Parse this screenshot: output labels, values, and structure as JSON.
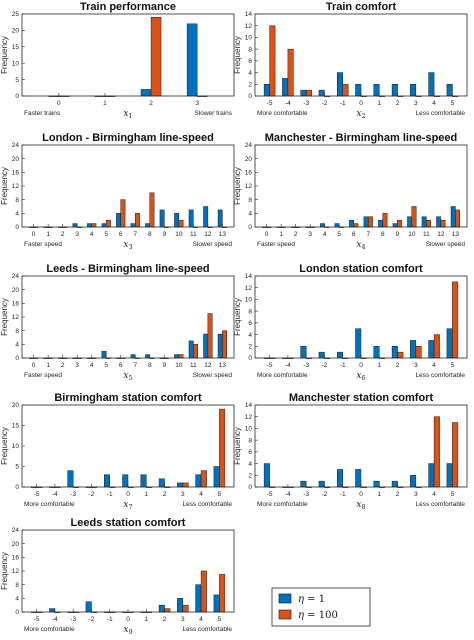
{
  "colors": {
    "series1": "#0072BD",
    "series2": "#D95319",
    "axis": "#262626"
  },
  "legend": {
    "items": [
      {
        "symbol": "η",
        "rest": " = 1"
      },
      {
        "symbol": "η",
        "rest": " = 100"
      }
    ]
  },
  "chart_data": [
    {
      "type": "bar",
      "title": "Train performance",
      "ylabel": "Frequency",
      "xvar": "x",
      "xsub": "1",
      "categories": [
        "0",
        "1",
        "2",
        "3"
      ],
      "xlabel_left": "Faster trains",
      "xlabel_right": "Slower trains",
      "yticks": [
        0,
        5,
        10,
        15,
        20,
        25
      ],
      "ylim": [
        0,
        25
      ],
      "series": [
        {
          "values": [
            0,
            0,
            2,
            22
          ]
        },
        {
          "values": [
            0,
            0,
            24,
            0
          ]
        }
      ]
    },
    {
      "type": "bar",
      "title": "Train comfort",
      "ylabel": "Frequency",
      "xvar": "x",
      "xsub": "2",
      "categories": [
        "-5",
        "-4",
        "-3",
        "-2",
        "-1",
        "0",
        "1",
        "2",
        "3",
        "4",
        "5"
      ],
      "xlabel_left": "More comfortable",
      "xlabel_right": "Less comfortable",
      "yticks": [
        0,
        2,
        4,
        6,
        8,
        10,
        12,
        14
      ],
      "ylim": [
        0,
        14
      ],
      "series": [
        {
          "values": [
            2,
            3,
            1,
            1,
            4,
            2,
            2,
            2,
            2,
            4,
            2
          ]
        },
        {
          "values": [
            12,
            8,
            1,
            0,
            2,
            0,
            0,
            0,
            0,
            0,
            0
          ]
        }
      ]
    },
    {
      "type": "bar",
      "title": "London - Birmingham line-speed",
      "ylabel": "Frequency",
      "xvar": "x",
      "xsub": "3",
      "categories": [
        "0",
        "1",
        "2",
        "3",
        "4",
        "5",
        "6",
        "7",
        "8",
        "9",
        "10",
        "11",
        "12",
        "13"
      ],
      "xlabel_left": "Faster speed",
      "xlabel_right": "Slower speed",
      "yticks": [
        0,
        4,
        8,
        12,
        16,
        20,
        24
      ],
      "ylim": [
        0,
        24
      ],
      "series": [
        {
          "values": [
            0,
            0,
            0,
            1,
            1,
            1,
            4,
            1,
            1,
            5,
            4,
            5,
            6,
            5
          ]
        },
        {
          "values": [
            0,
            0,
            0,
            0,
            1,
            2,
            8,
            4,
            10,
            0,
            2,
            0,
            0,
            0
          ]
        }
      ]
    },
    {
      "type": "bar",
      "title": "Manchester - Birmingham line-speed",
      "ylabel": "Frequency",
      "xvar": "x",
      "xsub": "4",
      "categories": [
        "0",
        "1",
        "2",
        "3",
        "4",
        "5",
        "6",
        "7",
        "8",
        "9",
        "10",
        "11",
        "12",
        "13"
      ],
      "xlabel_left": "Faster speed",
      "xlabel_right": "Slower speed",
      "yticks": [
        0,
        4,
        8,
        12,
        16,
        20,
        24
      ],
      "ylim": [
        0,
        24
      ],
      "series": [
        {
          "values": [
            0,
            0,
            0,
            0,
            1,
            1,
            2,
            3,
            2,
            1,
            3,
            3,
            3,
            6
          ]
        },
        {
          "values": [
            0,
            0,
            0,
            0,
            0,
            0,
            1,
            3,
            4,
            2,
            6,
            2,
            2,
            5
          ]
        }
      ]
    },
    {
      "type": "bar",
      "title": "Leeds - Birmingham line-speed",
      "ylabel": "Frequency",
      "xvar": "x",
      "xsub": "5",
      "categories": [
        "0",
        "1",
        "2",
        "3",
        "4",
        "5",
        "6",
        "7",
        "8",
        "9",
        "10",
        "11",
        "12",
        "13"
      ],
      "xlabel_left": "Faster speed",
      "xlabel_right": "Slower speed",
      "yticks": [
        0,
        4,
        8,
        12,
        16,
        20,
        24
      ],
      "ylim": [
        0,
        24
      ],
      "series": [
        {
          "values": [
            0,
            0,
            0,
            0,
            0,
            2,
            0,
            1,
            1,
            0,
            1,
            5,
            7,
            7
          ]
        },
        {
          "values": [
            0,
            0,
            0,
            0,
            0,
            0,
            0,
            0,
            0,
            0,
            1,
            4,
            13,
            8
          ]
        }
      ]
    },
    {
      "type": "bar",
      "title": "London station comfort",
      "ylabel": "Frequency",
      "xvar": "x",
      "xsub": "6",
      "categories": [
        "-5",
        "-4",
        "-3",
        "-2",
        "-1",
        "0",
        "1",
        "2",
        "3",
        "4",
        "5"
      ],
      "xlabel_left": "More comfortable",
      "xlabel_right": "Less comfortable",
      "yticks": [
        0,
        2,
        4,
        6,
        8,
        10,
        12,
        14
      ],
      "ylim": [
        0,
        14
      ],
      "series": [
        {
          "values": [
            0,
            0,
            2,
            1,
            1,
            5,
            2,
            2,
            3,
            3,
            5
          ]
        },
        {
          "values": [
            0,
            0,
            0,
            0,
            0,
            0,
            0,
            1,
            2,
            4,
            13
          ]
        }
      ]
    },
    {
      "type": "bar",
      "title": "Birmingham station comfort",
      "ylabel": "Frequency",
      "xvar": "x",
      "xsub": "7",
      "categories": [
        "-5",
        "-4",
        "-3",
        "-2",
        "-1",
        "0",
        "1",
        "2",
        "3",
        "4",
        "5"
      ],
      "xlabel_left": "More comfortable",
      "xlabel_right": "Less comfortable",
      "yticks": [
        0,
        5,
        10,
        15,
        20
      ],
      "ylim": [
        0,
        20
      ],
      "series": [
        {
          "values": [
            0,
            0,
            4,
            0,
            3,
            3,
            3,
            2,
            1,
            3,
            5
          ]
        },
        {
          "values": [
            0,
            0,
            0,
            0,
            0,
            0,
            0,
            0,
            1,
            4,
            19
          ]
        }
      ]
    },
    {
      "type": "bar",
      "title": "Manchester station comfort",
      "ylabel": "Frequency",
      "xvar": "x",
      "xsub": "8",
      "categories": [
        "-5",
        "-4",
        "-3",
        "-2",
        "-1",
        "0",
        "1",
        "2",
        "3",
        "4",
        "5"
      ],
      "xlabel_left": "More comfortable",
      "xlabel_right": "Less comfortable",
      "yticks": [
        0,
        2,
        4,
        6,
        8,
        10,
        12,
        14
      ],
      "ylim": [
        0,
        14
      ],
      "series": [
        {
          "values": [
            4,
            0,
            1,
            1,
            3,
            3,
            1,
            1,
            2,
            4,
            4
          ]
        },
        {
          "values": [
            0,
            0,
            0,
            0,
            0,
            0,
            0,
            0,
            0,
            12,
            11
          ]
        }
      ]
    },
    {
      "type": "bar",
      "title": "Leeds station comfort",
      "ylabel": "Frequency",
      "xvar": "x",
      "xsub": "9",
      "categories": [
        "-5",
        "-4",
        "-3",
        "-2",
        "-1",
        "0",
        "1",
        "2",
        "3",
        "4",
        "5"
      ],
      "xlabel_left": "More comfortable",
      "xlabel_right": "Less comfortable",
      "yticks": [
        0,
        4,
        8,
        12,
        16,
        20,
        24
      ],
      "ylim": [
        0,
        24
      ],
      "series": [
        {
          "values": [
            0,
            1,
            0,
            3,
            0,
            0,
            0,
            2,
            4,
            8,
            5
          ]
        },
        {
          "values": [
            0,
            0,
            0,
            0,
            0,
            0,
            0,
            1,
            2,
            12,
            11
          ]
        }
      ]
    }
  ]
}
